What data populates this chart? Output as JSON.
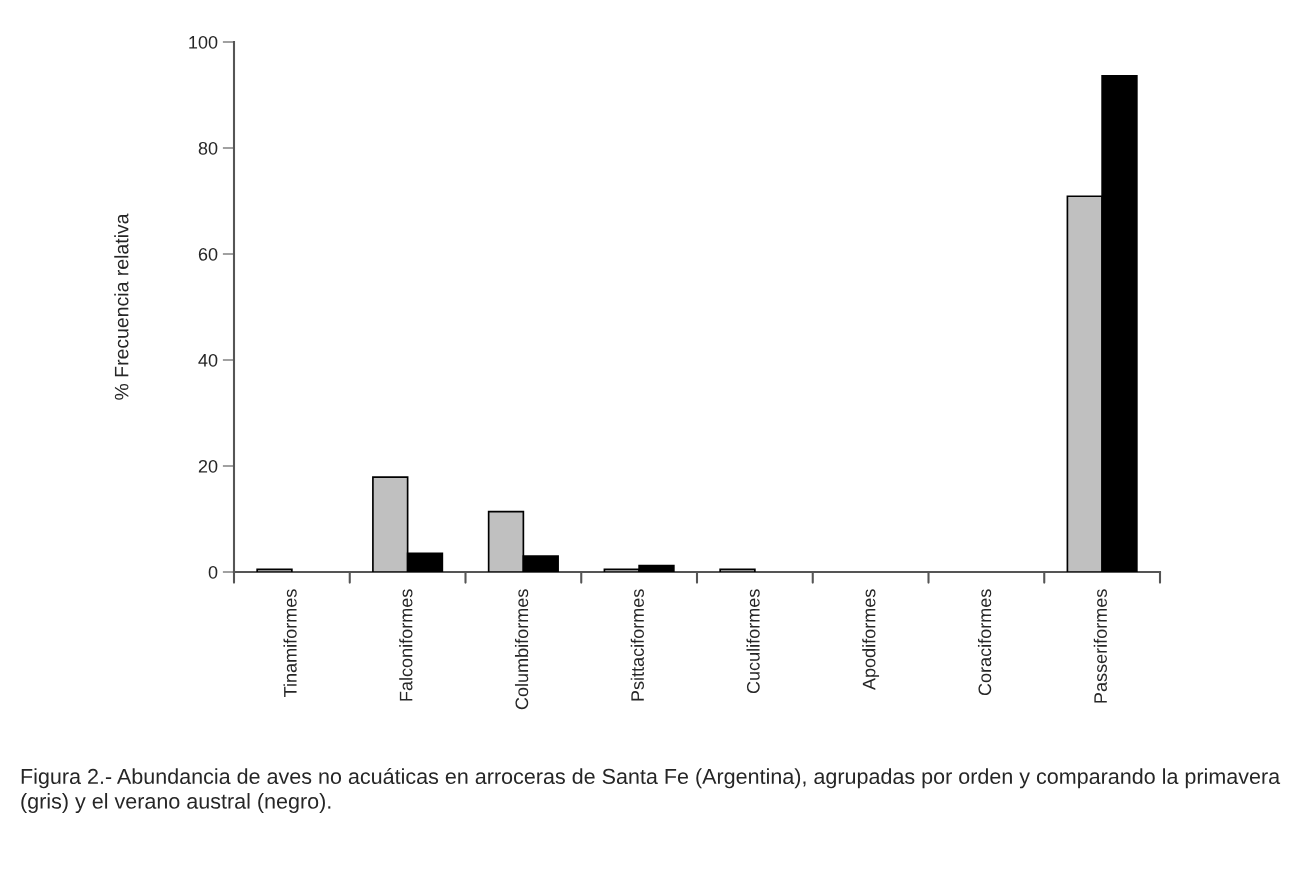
{
  "chart_data": {
    "type": "bar",
    "ylabel": "% Frecuencia relativa",
    "categories": [
      "Tinamiformes",
      "Falconiformes",
      "Columbiformes",
      "Psittaciformes",
      "Cuculiformes",
      "Apodiformes",
      "Coraciformes",
      "Passeriformes"
    ],
    "series": [
      {
        "color": "#c0c0c0",
        "values": [
          0.5,
          17.9,
          11.4,
          0.5,
          0.5,
          null,
          null,
          70.9
        ]
      },
      {
        "color": "#000000",
        "values": [
          null,
          3.5,
          3.0,
          1.2,
          null,
          null,
          null,
          93.6
        ]
      }
    ],
    "ylim": [
      0,
      100
    ],
    "yticks": [
      0,
      20,
      40,
      60,
      80,
      100
    ],
    "grid": false,
    "legend": false,
    "annotations": [
      "Figura 2.- Abundancia de aves no acuáticas en arroceras de Santa Fe (Argentina), agrupadas por orden y comparando la primavera (gris) y el verano austral (negro)."
    ]
  }
}
